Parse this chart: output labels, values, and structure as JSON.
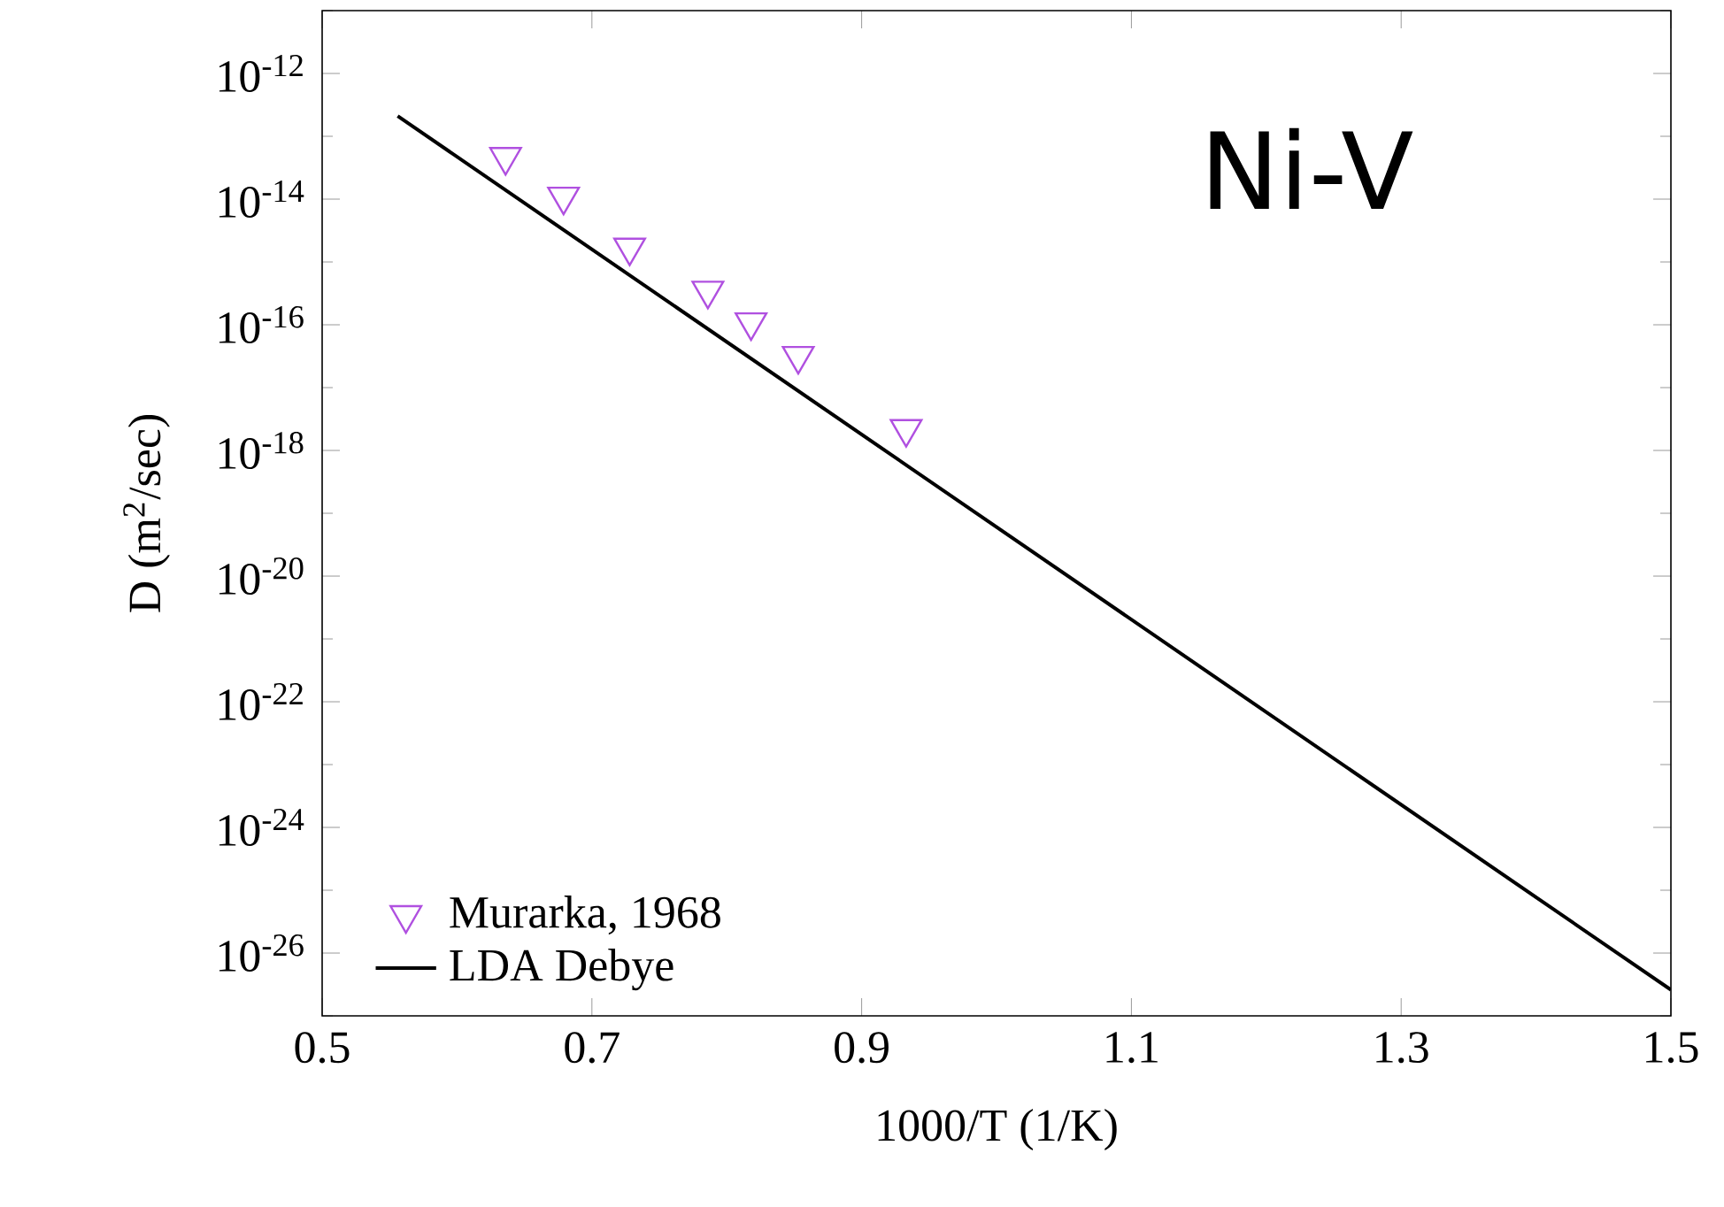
{
  "chart_data": {
    "type": "scatter",
    "title": "Ni-V",
    "xlabel": "1000/T (1/K)",
    "ylabel": "D (m$^{2}$/sec)",
    "log": "y",
    "legend": "bottom left",
    "grid": false,
    "xlim": [
      0.5,
      1.5
    ],
    "xticks": [
      0.5,
      0.7,
      0.9,
      1.1,
      1.3,
      1.5
    ],
    "ylim": [
      1e-27,
      1e-11
    ],
    "yticks": [
      {
        "value": 1e-12,
        "label": "10$^{-12}$"
      },
      {
        "value": 1e-14,
        "label": "10$^{-14}$"
      },
      {
        "value": 1e-16,
        "label": "10$^{-16}$"
      },
      {
        "value": 1e-18,
        "label": "10$^{-18}$"
      },
      {
        "value": 1e-20,
        "label": "10$^{-20}$"
      },
      {
        "value": 1e-22,
        "label": "10$^{-22}$"
      },
      {
        "value": 1e-24,
        "label": "10$^{-24}$"
      },
      {
        "value": 1e-26,
        "label": "10$^{-26}$"
      },
      {
        "value": 1e-11,
        "label": null
      },
      {
        "value": 1e-13,
        "label": null
      },
      {
        "value": 1e-15,
        "label": null
      },
      {
        "value": 1e-17,
        "label": null
      },
      {
        "value": 1e-19,
        "label": null
      },
      {
        "value": 1e-21,
        "label": null
      },
      {
        "value": 1e-23,
        "label": null
      },
      {
        "value": 1e-25,
        "label": null
      },
      {
        "value": 1e-27,
        "label": null
      }
    ],
    "series": [
      {
        "name": "Murarka, 1968",
        "marker": "triangle",
        "color": "#b050e0",
        "x": [
          0.636,
          0.679,
          0.728,
          0.786,
          0.818,
          0.853,
          0.933
        ],
        "values": [
          4.7e-14,
          1.1e-14,
          1.7e-15,
          3.5e-16,
          1.1e-16,
          3.2e-17,
          2.2e-18
        ]
      },
      {
        "name": "LDA Debye",
        "type": "line",
        "line_style": "solid",
        "color": "#000000",
        "x": [
          0.556,
          1.5
        ],
        "values": [
          2.1e-13,
          2.6e-27
        ]
      }
    ]
  }
}
